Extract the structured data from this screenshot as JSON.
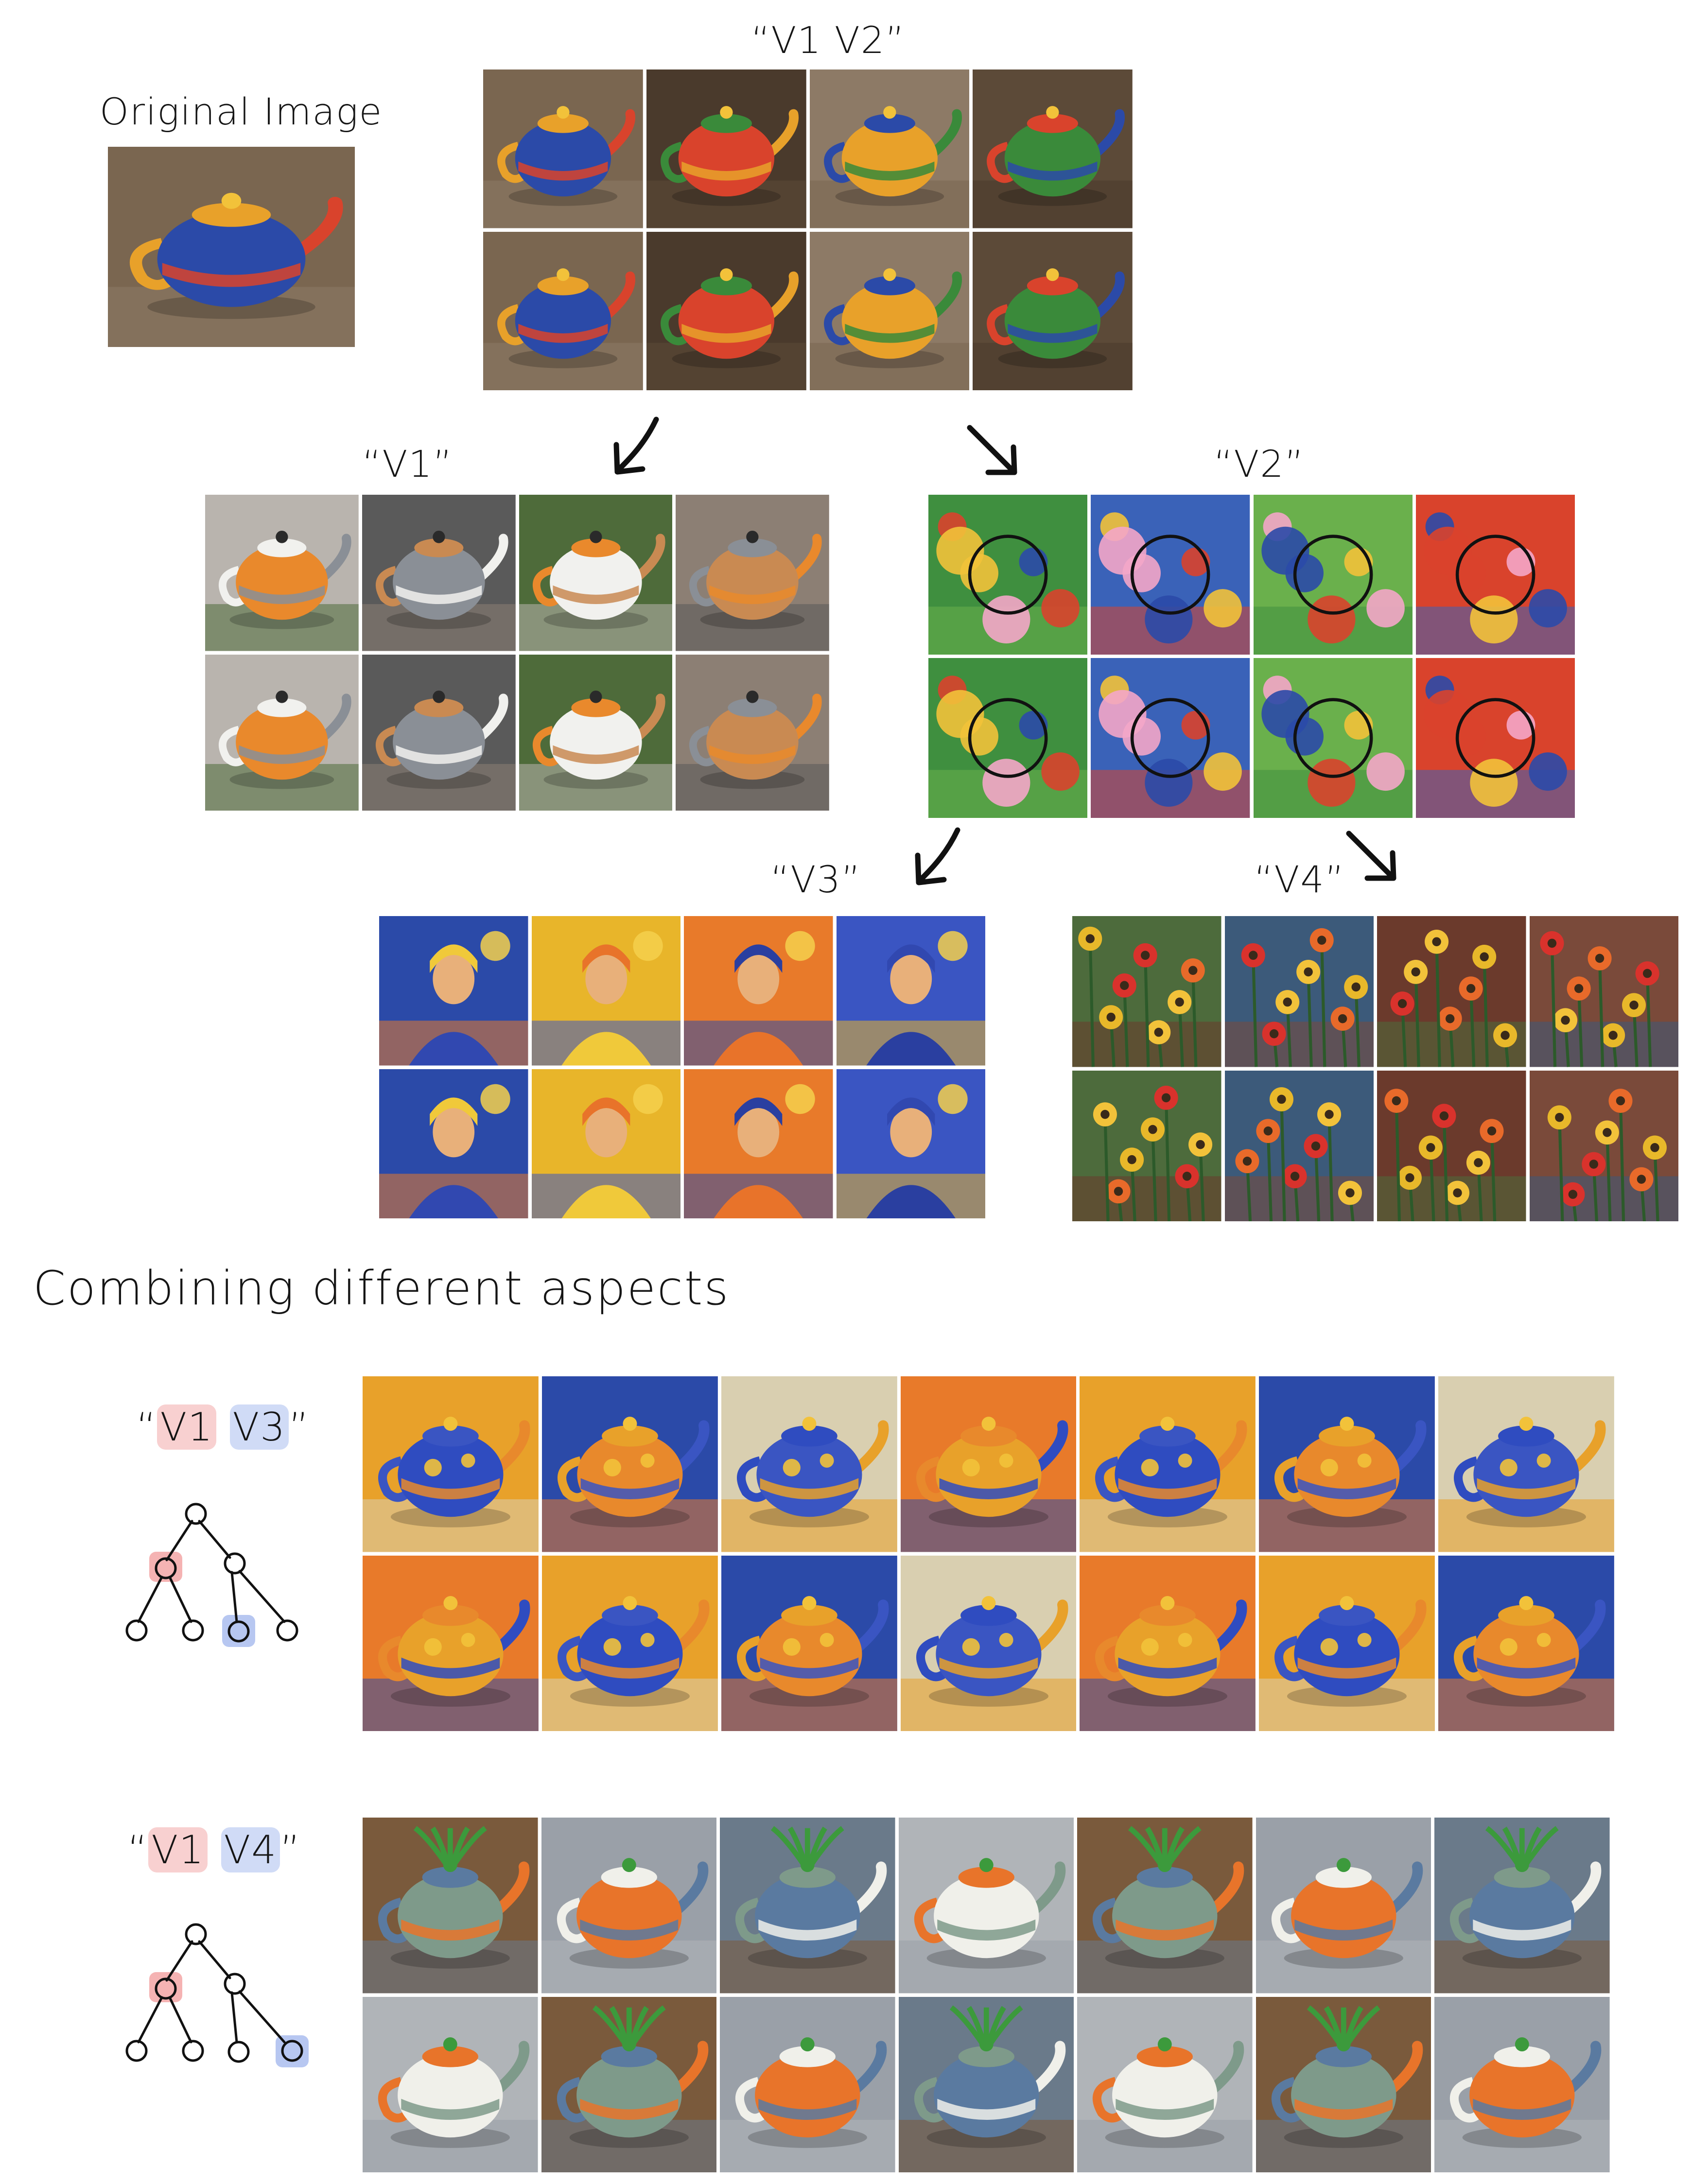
{
  "labels": {
    "original": "Original Image",
    "v1v2": "“V1 V2”",
    "v1": "“V1”",
    "v2": "“V2”",
    "v3": "“V3”",
    "v4": "“V4”",
    "combining": "Combining different aspects",
    "combo1": {
      "open": "“",
      "a": "V1",
      "b": "V3",
      "close": "”"
    },
    "combo2": {
      "open": "“",
      "a": "V1",
      "b": "V4",
      "close": "”"
    }
  },
  "colors": {
    "highlight_red": "#f29a9a",
    "highlight_blue": "#9fb4ec"
  },
  "panels": {
    "original": {
      "rows": 1,
      "cols": 1,
      "subject": "teapot"
    },
    "v1v2": {
      "rows": 2,
      "cols": 4,
      "subject": "teapot"
    },
    "v1": {
      "rows": 2,
      "cols": 4,
      "subject": "plain-teapot"
    },
    "v2": {
      "rows": 2,
      "cols": 4,
      "subject": "pattern"
    },
    "v3": {
      "rows": 2,
      "cols": 4,
      "subject": "portrait"
    },
    "v4": {
      "rows": 2,
      "cols": 4,
      "subject": "flowers"
    },
    "combo1": {
      "rows": 2,
      "cols": 7,
      "subject": "painted-teapot"
    },
    "combo2": {
      "rows": 2,
      "cols": 7,
      "subject": "plant-teapot"
    }
  }
}
